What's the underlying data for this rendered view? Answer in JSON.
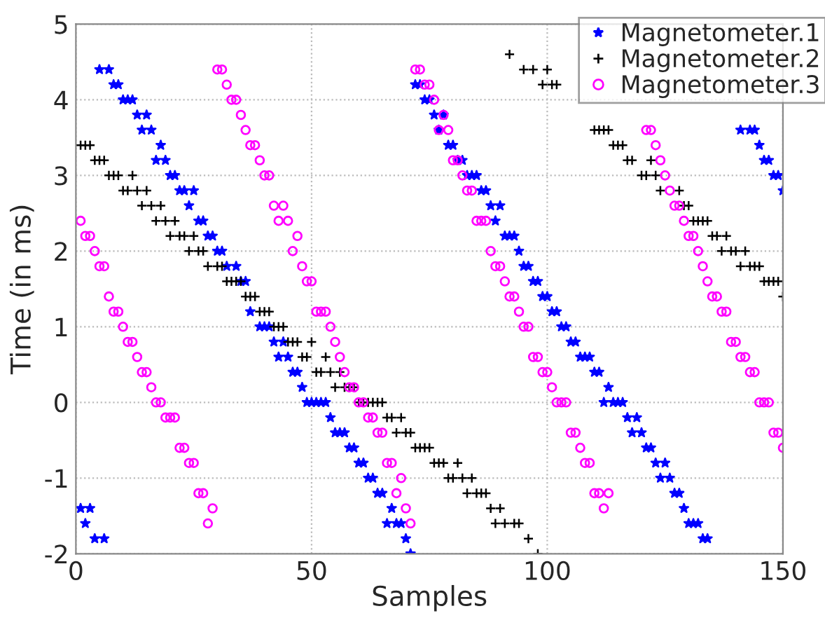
{
  "chart_data": {
    "type": "scatter",
    "xlabel": "Samples",
    "ylabel": "Time (in ms)",
    "xlim": [
      0,
      150
    ],
    "ylim": [
      -2,
      5
    ],
    "xticks": [
      0,
      50,
      100,
      150
    ],
    "yticks": [
      -2,
      -1,
      0,
      1,
      2,
      3,
      4,
      5
    ],
    "grid": true,
    "legend": "top right",
    "series": [
      {
        "name": "Magnetometer.1",
        "color": "#0000ff",
        "marker": "star",
        "x": [
          1,
          2,
          3,
          4,
          5,
          6,
          7,
          8,
          9,
          10,
          11,
          12,
          13,
          14,
          15,
          16,
          17,
          18,
          19,
          20,
          21,
          22,
          23,
          24,
          25,
          26,
          27,
          28,
          29,
          30,
          31,
          32,
          34,
          35,
          36,
          37,
          39,
          40,
          41,
          42,
          43,
          44,
          45,
          46,
          47,
          48,
          49,
          50,
          51,
          52,
          53,
          54,
          55,
          56,
          57,
          58,
          59,
          60,
          61,
          62,
          63,
          64,
          65,
          66,
          67,
          68,
          69,
          70,
          71,
          72,
          73,
          74,
          75,
          76,
          77,
          78,
          79,
          80,
          81,
          82,
          83,
          84,
          85,
          86,
          87,
          88,
          89,
          90,
          91,
          92,
          93,
          94,
          95,
          96,
          97,
          98,
          99,
          100,
          101,
          102,
          103,
          104,
          105,
          106,
          107,
          108,
          109,
          110,
          111,
          112,
          113,
          114,
          115,
          116,
          117,
          118,
          119,
          120,
          121,
          122,
          123,
          124,
          125,
          126,
          127,
          128,
          129,
          130,
          131,
          132,
          133,
          134,
          141,
          143,
          144,
          145,
          146,
          147,
          148,
          149,
          150
        ],
        "values": [
          -1.4,
          -1.6,
          -1.4,
          -1.8,
          4.4,
          -1.8,
          4.4,
          4.2,
          4.2,
          4.0,
          4.0,
          4.0,
          3.8,
          3.6,
          3.8,
          3.6,
          3.2,
          3.4,
          3.2,
          3.0,
          3.0,
          2.8,
          2.8,
          2.6,
          2.8,
          2.4,
          2.4,
          2.2,
          2.2,
          2.0,
          2.0,
          1.8,
          1.8,
          1.6,
          1.6,
          1.2,
          1.0,
          1.0,
          1.0,
          0.8,
          0.6,
          0.8,
          0.6,
          0.4,
          0.4,
          0.2,
          0,
          0,
          0,
          0,
          0,
          -0.2,
          -0.4,
          -0.4,
          -0.4,
          -0.6,
          -0.6,
          -0.8,
          -0.8,
          -1.0,
          -1.0,
          -1.2,
          -1.2,
          -1.6,
          -1.4,
          -1.6,
          -1.6,
          -1.8,
          -2.0,
          4.2,
          4.2,
          4.0,
          4.0,
          3.8,
          3.6,
          3.8,
          3.4,
          3.4,
          3.2,
          3.2,
          3.0,
          3.0,
          3.0,
          2.8,
          2.8,
          2.6,
          2.4,
          2.6,
          2.2,
          2.2,
          2.2,
          2.0,
          1.8,
          1.8,
          1.6,
          1.6,
          1.4,
          1.4,
          1.2,
          1.2,
          1.0,
          1.0,
          0.8,
          0.8,
          0.6,
          0.6,
          0.6,
          0.4,
          0.4,
          0,
          0.2,
          0,
          0,
          0,
          -0.2,
          -0.4,
          -0.2,
          -0.4,
          -0.6,
          -0.6,
          -0.8,
          -1.0,
          -0.8,
          -1.0,
          -1.2,
          -1.2,
          -1.4,
          -1.6,
          -1.6,
          -1.6,
          -1.8,
          -1.8,
          3.6,
          3.6,
          3.6,
          3.4,
          3.2,
          3.2,
          3.0,
          3.0,
          2.8
        ]
      },
      {
        "name": "Magnetometer.2",
        "color": "#000000",
        "marker": "cross",
        "x": [
          1,
          2,
          3,
          4,
          5,
          6,
          7,
          8,
          9,
          10,
          11,
          12,
          13,
          14,
          15,
          16,
          17,
          18,
          19,
          20,
          21,
          22,
          23,
          24,
          25,
          26,
          27,
          28,
          30,
          31,
          32,
          33,
          34,
          35,
          36,
          37,
          38,
          39,
          40,
          41,
          42,
          43,
          44,
          45,
          46,
          47,
          48,
          49,
          50,
          51,
          52,
          53,
          54,
          55,
          56,
          57,
          58,
          59,
          60,
          61,
          62,
          63,
          64,
          65,
          66,
          67,
          68,
          69,
          70,
          71,
          72,
          73,
          74,
          75,
          76,
          77,
          78,
          79,
          80,
          81,
          82,
          83,
          84,
          85,
          86,
          87,
          88,
          89,
          90,
          91,
          92,
          93,
          94,
          95,
          96,
          97,
          98,
          99,
          100,
          101,
          102,
          110,
          111,
          112,
          113,
          114,
          115,
          116,
          117,
          118,
          120,
          121,
          122,
          123,
          124,
          128,
          129,
          130,
          131,
          132,
          133,
          134,
          135,
          136,
          137,
          138,
          139,
          140,
          141,
          142,
          143,
          144,
          145,
          146,
          147,
          148,
          149,
          150
        ],
        "values": [
          3.4,
          3.4,
          3.4,
          3.2,
          3.2,
          3.2,
          3.0,
          3.0,
          3.0,
          2.8,
          2.8,
          3.0,
          2.8,
          2.6,
          2.8,
          2.6,
          2.4,
          2.6,
          2.4,
          2.2,
          2.4,
          2.2,
          2.2,
          2.0,
          2.2,
          2.0,
          2.0,
          1.8,
          1.8,
          1.8,
          1.6,
          1.6,
          1.6,
          1.6,
          1.4,
          1.4,
          1.4,
          1.2,
          1.2,
          1.2,
          1.0,
          1.0,
          1.0,
          0.8,
          0.8,
          0.8,
          0.6,
          0.6,
          0.8,
          0.4,
          0.4,
          0.6,
          0.4,
          0.2,
          0.4,
          0.2,
          0.2,
          0.2,
          0,
          0,
          0,
          0,
          0,
          0,
          -0.2,
          -0.2,
          -0.4,
          -0.2,
          -0.4,
          -0.4,
          -0.6,
          -0.6,
          -0.6,
          -0.6,
          -0.8,
          -0.8,
          -0.8,
          -1.0,
          -1.0,
          -0.8,
          -1.0,
          -1.2,
          -1.0,
          -1.2,
          -1.2,
          -1.2,
          -1.4,
          -1.6,
          -1.4,
          -1.6,
          4.6,
          -1.6,
          -1.6,
          4.4,
          -1.8,
          4.4,
          -2.0,
          4.2,
          4.4,
          4.2,
          4.2,
          3.6,
          3.6,
          3.6,
          3.6,
          3.4,
          3.4,
          3.4,
          3.2,
          3.2,
          3.0,
          3.0,
          3.2,
          3.0,
          2.8,
          2.8,
          2.6,
          2.6,
          2.4,
          2.4,
          2.4,
          2.4,
          2.2,
          2.2,
          2.0,
          2.2,
          2.0,
          2.0,
          1.8,
          2.0,
          1.8,
          1.8,
          1.8,
          1.6,
          1.6,
          1.6,
          1.6,
          1.4
        ]
      },
      {
        "name": "Magnetometer.3",
        "color": "#ff00ff",
        "marker": "circle",
        "x": [
          1,
          2,
          3,
          4,
          5,
          6,
          7,
          8,
          9,
          10,
          11,
          12,
          13,
          14,
          15,
          16,
          17,
          18,
          19,
          20,
          21,
          22,
          23,
          24,
          25,
          26,
          27,
          28,
          29,
          30,
          31,
          32,
          33,
          34,
          35,
          36,
          37,
          38,
          39,
          40,
          41,
          42,
          43,
          44,
          45,
          46,
          47,
          48,
          49,
          50,
          51,
          52,
          53,
          54,
          55,
          56,
          57,
          58,
          59,
          60,
          61,
          62,
          63,
          64,
          65,
          66,
          67,
          68,
          69,
          70,
          71,
          72,
          73,
          74,
          75,
          76,
          77,
          78,
          79,
          80,
          81,
          82,
          83,
          84,
          85,
          86,
          87,
          88,
          89,
          90,
          91,
          92,
          93,
          94,
          95,
          96,
          97,
          98,
          99,
          100,
          101,
          102,
          103,
          104,
          105,
          106,
          107,
          108,
          109,
          110,
          111,
          112,
          113,
          121,
          122,
          123,
          124,
          125,
          126,
          127,
          128,
          129,
          130,
          131,
          132,
          133,
          134,
          135,
          136,
          137,
          138,
          139,
          140,
          141,
          142,
          143,
          144,
          145,
          146,
          147,
          148,
          149,
          150
        ],
        "values": [
          2.4,
          2.2,
          2.2,
          2.0,
          1.8,
          1.8,
          1.4,
          1.2,
          1.2,
          1.0,
          0.8,
          0.8,
          0.6,
          0.4,
          0.4,
          0.2,
          0,
          0,
          -0.2,
          -0.2,
          -0.2,
          -0.6,
          -0.6,
          -0.8,
          -0.8,
          -1.2,
          -1.2,
          -1.6,
          -1.4,
          4.4,
          4.4,
          4.2,
          4.0,
          4.0,
          3.8,
          3.6,
          3.4,
          3.4,
          3.2,
          3.0,
          3.0,
          2.6,
          2.4,
          2.6,
          2.4,
          2.0,
          2.2,
          1.8,
          1.6,
          1.6,
          1.2,
          1.2,
          1.2,
          1.0,
          0.8,
          0.6,
          0.4,
          0.2,
          0.2,
          0,
          0,
          -0.2,
          -0.2,
          -0.4,
          -0.4,
          -0.8,
          -0.8,
          -1.2,
          -1.0,
          -1.4,
          -1.6,
          4.4,
          4.4,
          4.2,
          4.2,
          4.0,
          3.6,
          3.8,
          3.6,
          3.2,
          3.2,
          3.0,
          2.8,
          2.8,
          2.4,
          2.4,
          2.4,
          2.0,
          1.8,
          1.8,
          1.6,
          1.4,
          1.4,
          1.2,
          1.0,
          1.0,
          0.6,
          0.6,
          0.4,
          0.4,
          0.2,
          0,
          0,
          0,
          -0.4,
          -0.4,
          -0.6,
          -0.8,
          -0.8,
          -1.2,
          -1.2,
          -1.4,
          -1.2,
          3.6,
          3.6,
          3.4,
          3.2,
          3.0,
          2.8,
          2.6,
          2.6,
          2.4,
          2.2,
          2.2,
          2.0,
          1.8,
          1.6,
          1.4,
          1.4,
          1.2,
          1.2,
          0.8,
          0.8,
          0.6,
          0.6,
          0.4,
          0.4,
          0,
          0,
          0,
          -0.4,
          -0.4,
          -0.6
        ]
      }
    ]
  }
}
